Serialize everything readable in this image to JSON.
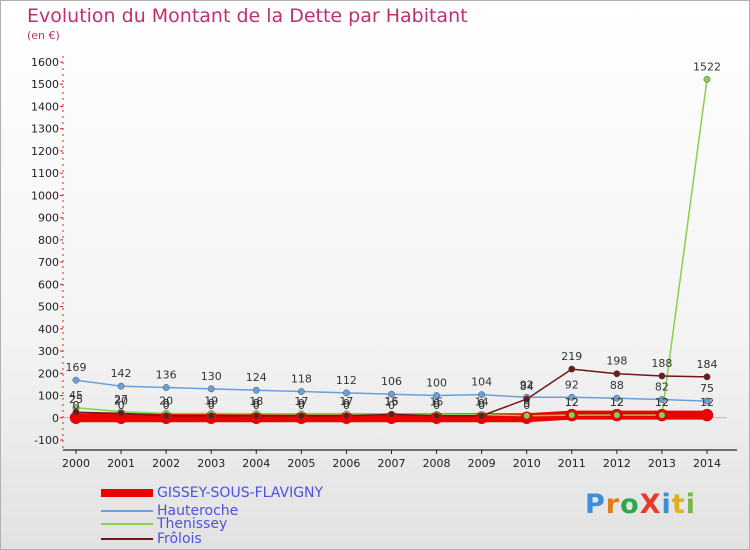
{
  "title": "Evolution du Montant de la Dette par Habitant",
  "unit_label": "(en €)",
  "logo": {
    "text": "ProXiti",
    "letter_colors": [
      "#3a8fd8",
      "#e07a1a",
      "#2ea84a",
      "#e63a2a",
      "#3a8fd8",
      "#e0b020",
      "#7ab648"
    ]
  },
  "chart_data": {
    "type": "line",
    "title": "Evolution du Montant de la Dette par Habitant",
    "ylabel": "(en €)",
    "x": [
      2000,
      2001,
      2002,
      2003,
      2004,
      2005,
      2006,
      2007,
      2008,
      2009,
      2010,
      2011,
      2012,
      2013,
      2014
    ],
    "ylim": [
      -100,
      1600
    ],
    "yticks": [
      -100,
      0,
      100,
      200,
      300,
      400,
      500,
      600,
      700,
      800,
      900,
      1000,
      1100,
      1200,
      1300,
      1400,
      1500,
      1600
    ],
    "grid": false,
    "legend": "bottom-left",
    "series": [
      {
        "name": "GISSEY-SOUS-FLAVIGNY",
        "color": "#ee0000",
        "width": 9,
        "values": [
          0,
          0,
          0,
          0,
          0,
          0,
          0,
          0,
          0,
          0,
          0,
          12,
          12,
          12,
          12
        ]
      },
      {
        "name": "Hauteroche",
        "color": "#6aa0d8",
        "width": 1.5,
        "values": [
          169,
          142,
          136,
          130,
          124,
          118,
          112,
          106,
          100,
          104,
          92,
          92,
          88,
          82,
          75
        ]
      },
      {
        "name": "Thenissey",
        "color": "#88d048",
        "width": 1.5,
        "values": [
          45,
          27,
          20,
          19,
          18,
          17,
          17,
          16,
          15,
          14,
          9,
          12,
          12,
          12,
          1522
        ]
      },
      {
        "name": "Frôlois",
        "color": "#701818",
        "width": 1.5,
        "values": [
          25,
          20,
          9,
          9,
          9,
          9,
          9,
          15,
          9,
          9,
          84,
          219,
          198,
          188,
          184
        ]
      }
    ]
  }
}
